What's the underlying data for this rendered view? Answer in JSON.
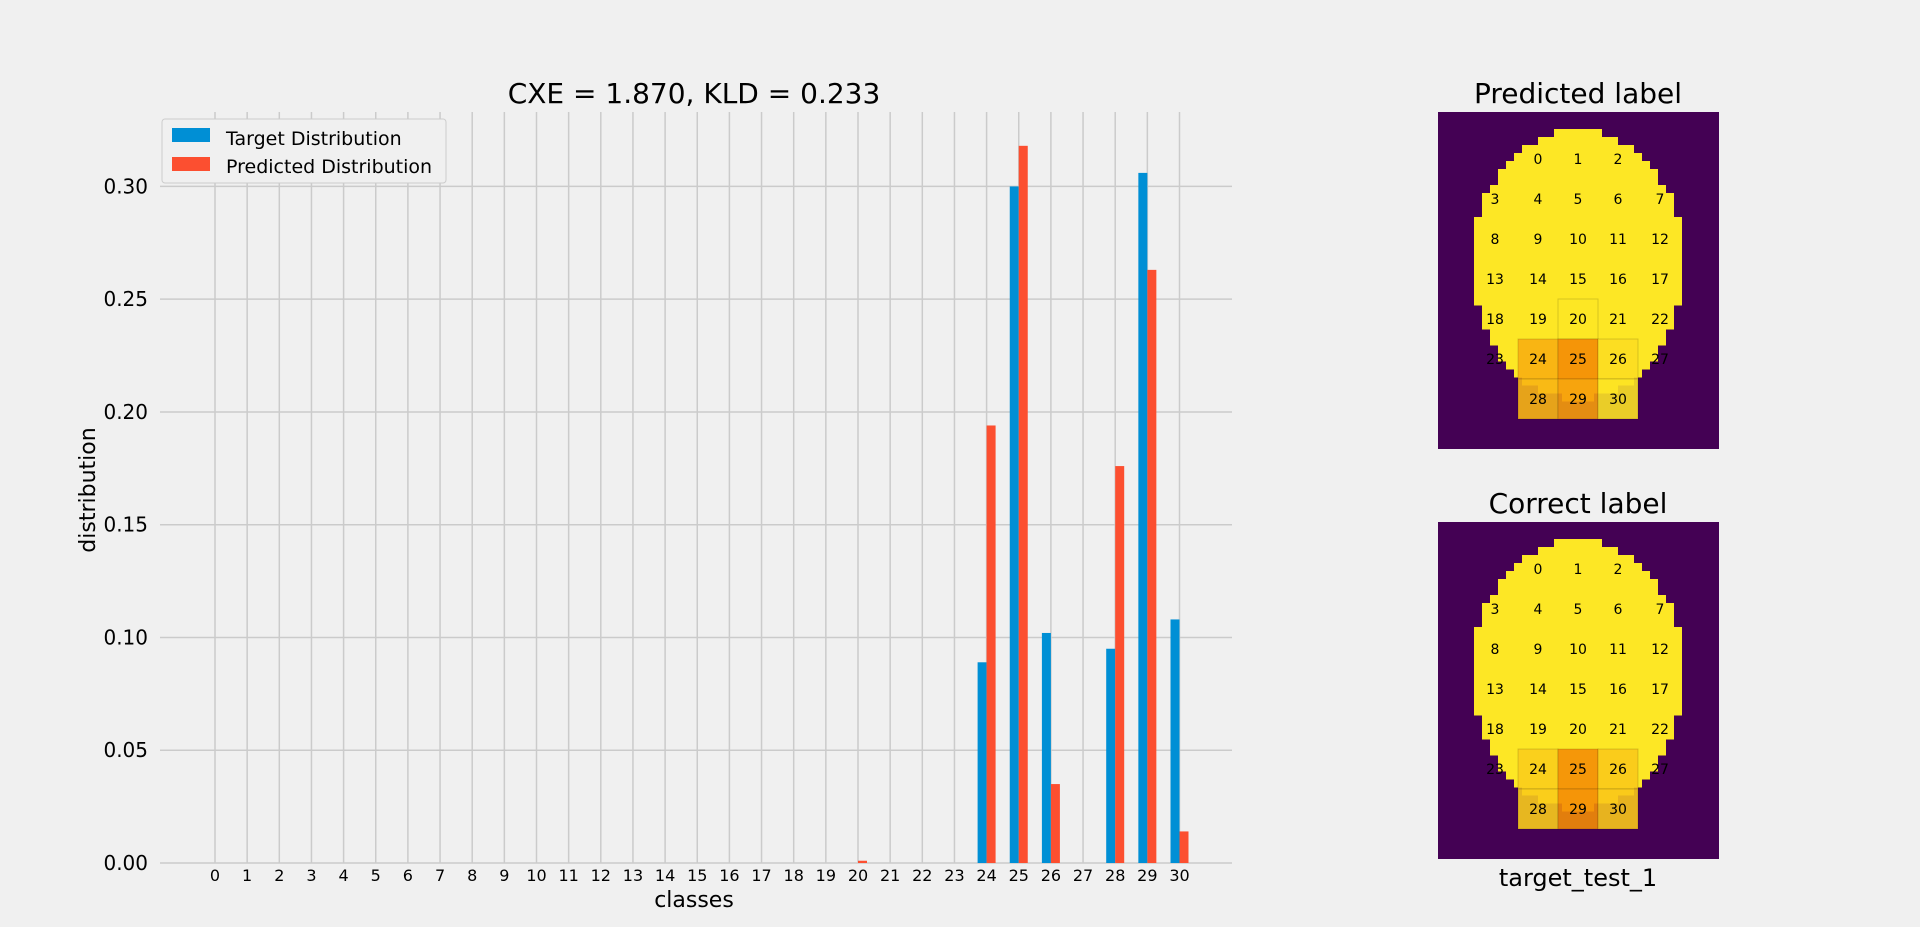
{
  "chart_data": [
    {
      "type": "bar",
      "title": "CXE = 1.870, KLD = 0.233",
      "xlabel": "classes",
      "ylabel": "distribution",
      "ylim": [
        0,
        0.333
      ],
      "yticks": [
        "0.00",
        "0.05",
        "0.10",
        "0.15",
        "0.20",
        "0.25",
        "0.30"
      ],
      "grid": true,
      "legend": "top-left",
      "categories": [
        "0",
        "1",
        "2",
        "3",
        "4",
        "5",
        "6",
        "7",
        "8",
        "9",
        "10",
        "11",
        "12",
        "13",
        "14",
        "15",
        "16",
        "17",
        "18",
        "19",
        "20",
        "21",
        "22",
        "23",
        "24",
        "25",
        "26",
        "27",
        "28",
        "29",
        "30"
      ],
      "series": [
        {
          "name": "Target Distribution",
          "color": "#008fd5",
          "values": [
            0,
            0,
            0,
            0,
            0,
            0,
            0,
            0,
            0,
            0,
            0,
            0,
            0,
            0,
            0,
            0,
            0,
            0,
            0,
            0,
            0,
            0,
            0,
            0,
            0.089,
            0.3,
            0.102,
            0,
            0.095,
            0.306,
            0.108
          ]
        },
        {
          "name": "Predicted Distribution",
          "color": "#fc4f30",
          "values": [
            0,
            0,
            0,
            0,
            0,
            0,
            0,
            0,
            0,
            0,
            0,
            0,
            0,
            0,
            0,
            0,
            0,
            0,
            0,
            0,
            0.001,
            0,
            0,
            0,
            0.194,
            0.318,
            0.035,
            0,
            0.176,
            0.263,
            0.014
          ]
        }
      ]
    },
    {
      "type": "heatmap",
      "title": "Predicted label",
      "colors": {
        "background": "#440154",
        "disk": "#fde725"
      },
      "cell_labels": [
        "0",
        "1",
        "2",
        "3",
        "4",
        "5",
        "6",
        "7",
        "8",
        "9",
        "10",
        "11",
        "12",
        "13",
        "14",
        "15",
        "16",
        "17",
        "18",
        "19",
        "20",
        "21",
        "22",
        "23",
        "24",
        "25",
        "26",
        "27",
        "28",
        "29",
        "30"
      ],
      "cell_values": [
        0,
        0,
        0,
        0,
        0,
        0,
        0,
        0,
        0,
        0,
        0,
        0,
        0,
        0,
        0,
        0,
        0,
        0,
        0,
        0,
        0.001,
        0,
        0,
        0,
        0.194,
        0.318,
        0.035,
        0,
        0.176,
        0.263,
        0.014
      ]
    },
    {
      "type": "heatmap",
      "title": "Correct label",
      "xlabel": "target_test_1",
      "colors": {
        "background": "#440154",
        "disk": "#fde725"
      },
      "cell_labels": [
        "0",
        "1",
        "2",
        "3",
        "4",
        "5",
        "6",
        "7",
        "8",
        "9",
        "10",
        "11",
        "12",
        "13",
        "14",
        "15",
        "16",
        "17",
        "18",
        "19",
        "20",
        "21",
        "22",
        "23",
        "24",
        "25",
        "26",
        "27",
        "28",
        "29",
        "30"
      ],
      "cell_values": [
        0,
        0,
        0,
        0,
        0,
        0,
        0,
        0,
        0,
        0,
        0,
        0,
        0,
        0,
        0,
        0,
        0,
        0,
        0,
        0,
        0,
        0,
        0,
        0,
        0.089,
        0.3,
        0.102,
        0,
        0.095,
        0.306,
        0.108
      ]
    }
  ]
}
